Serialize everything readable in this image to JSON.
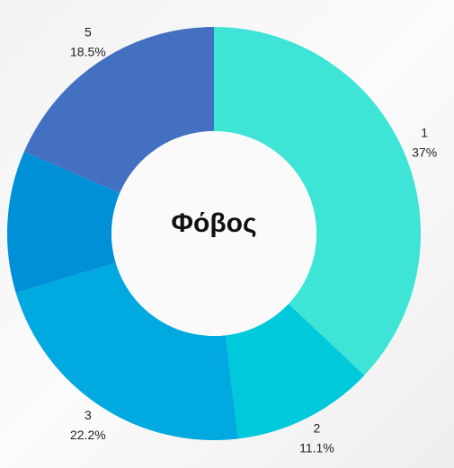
{
  "chart_data": {
    "type": "donut",
    "center_label": "Φόβος",
    "categories": [
      "1",
      "2",
      "3",
      null,
      "5"
    ],
    "values": [
      37,
      11.1,
      22.2,
      11.1,
      18.5
    ],
    "value_labels": [
      "37%",
      "11.1%",
      "22.2%",
      null,
      "18.5%"
    ],
    "colors": [
      "#3ee4d6",
      "#00c9dc",
      "#00a9df",
      "#0090d8",
      "#4470c2"
    ]
  }
}
